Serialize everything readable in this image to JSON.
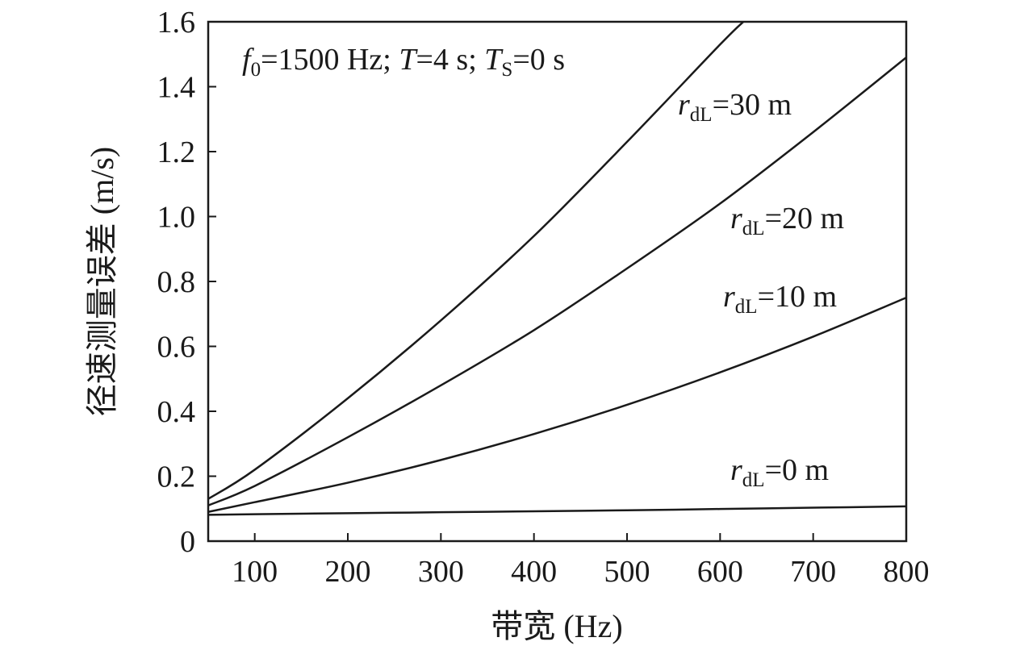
{
  "chart_data": {
    "type": "line",
    "xlabel": "带宽 (Hz)",
    "ylabel": "径速测量误差 (m/s)",
    "xlim": [
      50,
      800
    ],
    "ylim": [
      0,
      1.6
    ],
    "x_ticks": [
      "100",
      "200",
      "300",
      "400",
      "500",
      "600",
      "700",
      "800"
    ],
    "y_ticks": [
      "0",
      "0.2",
      "0.4",
      "0.6",
      "0.8",
      "1.0",
      "1.2",
      "1.4",
      "1.6"
    ],
    "grid": false,
    "legend": "none",
    "annotation": {
      "f_symbol": "f",
      "f_sub": "0",
      "f_value": "=1500 Hz; ",
      "T_symbol": "T",
      "T_value": "=4 s; ",
      "Ts_symbol": "T",
      "Ts_sub": "S",
      "Ts_value": "=0 s"
    },
    "series": [
      {
        "label_symbol": "r",
        "label_sub": "dL",
        "label_value": "=30 m",
        "x": [
          50,
          100,
          200,
          300,
          400,
          500,
          600,
          625
        ],
        "y": [
          0.13,
          0.22,
          0.44,
          0.68,
          0.94,
          1.23,
          1.53,
          1.6
        ]
      },
      {
        "label_symbol": "r",
        "label_sub": "dL",
        "label_value": "=20 m",
        "x": [
          50,
          100,
          200,
          300,
          400,
          500,
          600,
          700,
          800
        ],
        "y": [
          0.11,
          0.17,
          0.32,
          0.48,
          0.65,
          0.84,
          1.04,
          1.26,
          1.49
        ]
      },
      {
        "label_symbol": "r",
        "label_sub": "dL",
        "label_value": "=10 m",
        "x": [
          50,
          100,
          200,
          300,
          400,
          500,
          600,
          700,
          800
        ],
        "y": [
          0.09,
          0.12,
          0.18,
          0.25,
          0.33,
          0.42,
          0.52,
          0.63,
          0.75
        ]
      },
      {
        "label_symbol": "r",
        "label_sub": "dL",
        "label_value": "=0 m",
        "x": [
          50,
          100,
          200,
          300,
          400,
          500,
          600,
          700,
          800
        ],
        "y": [
          0.081,
          0.083,
          0.086,
          0.089,
          0.092,
          0.095,
          0.099,
          0.103,
          0.107
        ]
      }
    ]
  }
}
